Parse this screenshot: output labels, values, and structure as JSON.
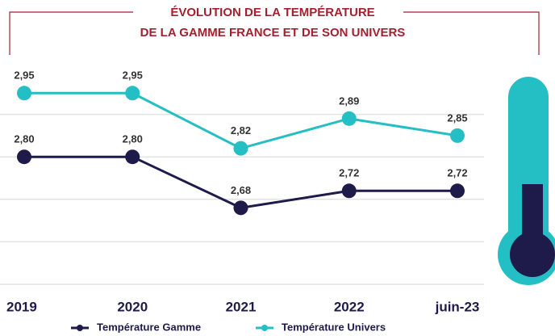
{
  "chart_data": {
    "type": "line",
    "title": [
      "ÉVOLUTION DE LA TEMPÉRATURE",
      "DE LA GAMME FRANCE ET DE SON UNIVERS"
    ],
    "categories": [
      "2019",
      "2020",
      "2021",
      "2022",
      "juin-23"
    ],
    "series": [
      {
        "name": "Température Gamme",
        "color": "#1e1a4a",
        "values": [
          2.8,
          2.8,
          2.68,
          2.72,
          2.72
        ],
        "value_labels": [
          "2,80",
          "2,80",
          "2,68",
          "2,72",
          "2,72"
        ]
      },
      {
        "name": "Température Univers",
        "color": "#24bfc4",
        "values": [
          2.95,
          2.95,
          2.82,
          2.89,
          2.85
        ],
        "value_labels": [
          "2,95",
          "2,95",
          "2,82",
          "2,89",
          "2,85"
        ]
      }
    ],
    "ylim": [
      2.5,
      3.0
    ],
    "yticks": [
      2.5,
      2.6,
      2.7,
      2.8,
      2.9
    ],
    "grid": true,
    "legend": "bottom"
  }
}
